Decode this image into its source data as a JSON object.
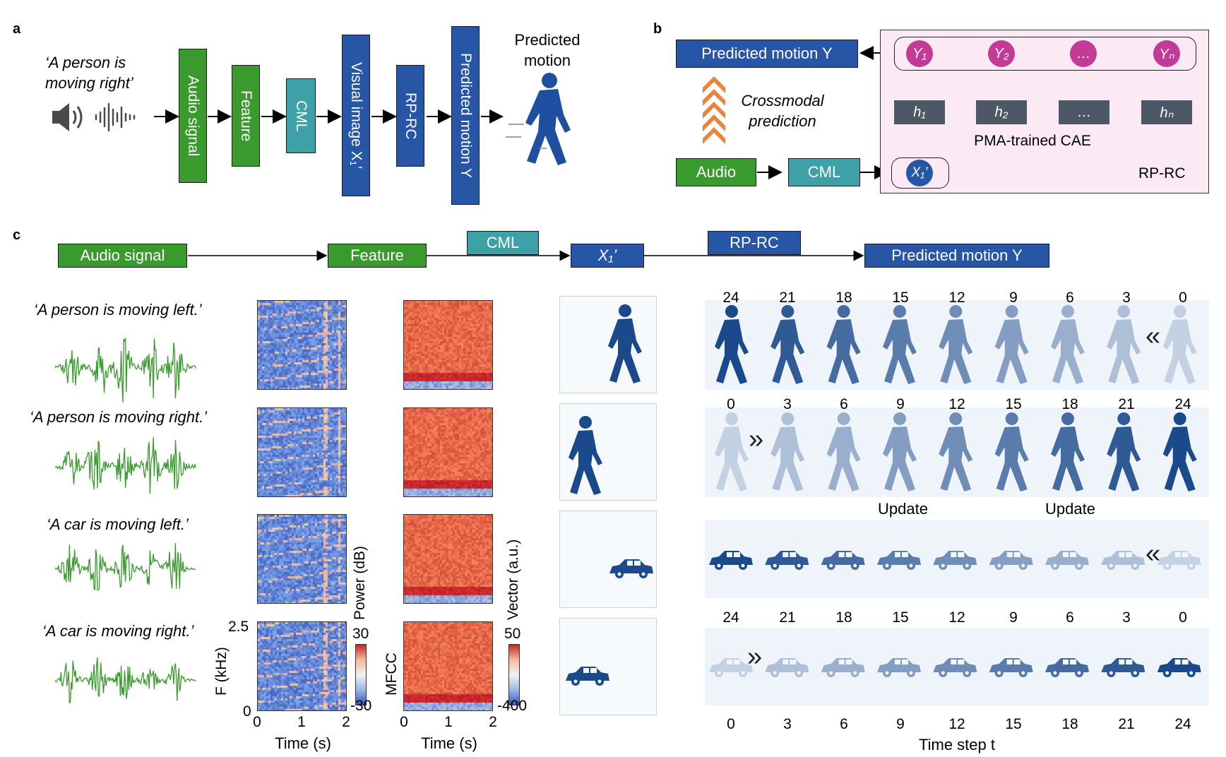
{
  "panel_letters": {
    "a": "a",
    "b": "b",
    "c": "c"
  },
  "panel_a": {
    "quote": "‘A person is moving right’",
    "boxes": [
      "Audio signal",
      "Feature",
      "CML",
      "Visual image X₁’",
      "RP-RC",
      "Predicted motion Y"
    ],
    "predicted_label": "Predicted motion",
    "icons": [
      "speaker-icon",
      "soundwave-icon",
      "walking-person-icon"
    ],
    "colors": {
      "green": "#3a9a2e",
      "teal": "#3fa1a8",
      "blue": "#2756a6"
    }
  },
  "panel_b": {
    "predicted": "Predicted motion Y",
    "crossmodal": "Crossmodal prediction",
    "audio": "Audio",
    "cml": "CML",
    "x1": "X₁’",
    "outputs": [
      "Y₁",
      "Y₂",
      "…",
      "Yₙ"
    ],
    "hidden": [
      "h₁",
      "h₂",
      "…",
      "hₙ"
    ],
    "cae": "PMA-trained CAE",
    "rprc": "RP-RC",
    "colors": {
      "node": "#c33b97",
      "hidden": "#4d5866",
      "bg": "#fbe9f4"
    }
  },
  "panel_c": {
    "pipeline": [
      "Audio signal",
      "Feature",
      "CML",
      "X₁’",
      "RP-RC",
      "Predicted motion Y"
    ],
    "sentences": [
      "‘A person is moving left.’",
      "‘A person is moving right.’",
      "‘A car is moving left.’",
      "‘A car is moving right.’"
    ],
    "spectrogram_axes": {
      "ylabel": "F (kHz)",
      "ymax": "2.5",
      "ymin": "0",
      "xlabel": "Time (s)",
      "xticks": [
        "0",
        "1",
        "2"
      ]
    },
    "power_colorbar": {
      "label": "Power (dB)",
      "max": "30",
      "min": "-30"
    },
    "mfcc_axes": {
      "ylabel": "MFCC",
      "xlabel": "Time (s)",
      "xticks": [
        "0",
        "1",
        "2"
      ]
    },
    "vector_colorbar": {
      "label": "Vector (a.u.)",
      "max": "50",
      "min": "-400"
    },
    "row1_steps": [
      "24",
      "21",
      "18",
      "15",
      "12",
      "9",
      "6",
      "3",
      "0"
    ],
    "row2_steps": [
      "0",
      "3",
      "6",
      "9",
      "12",
      "15",
      "18",
      "21",
      "24"
    ],
    "update_labels": [
      "Update",
      "Update"
    ],
    "row4_top_steps": [
      "24",
      "21",
      "18",
      "15",
      "12",
      "9",
      "6",
      "3",
      "0"
    ],
    "bottom_axis_steps": [
      "0",
      "3",
      "6",
      "9",
      "12",
      "15",
      "18",
      "21",
      "24"
    ],
    "bottom_axis_label": "Time step t",
    "arrow_left": "«",
    "arrow_right": "»"
  }
}
